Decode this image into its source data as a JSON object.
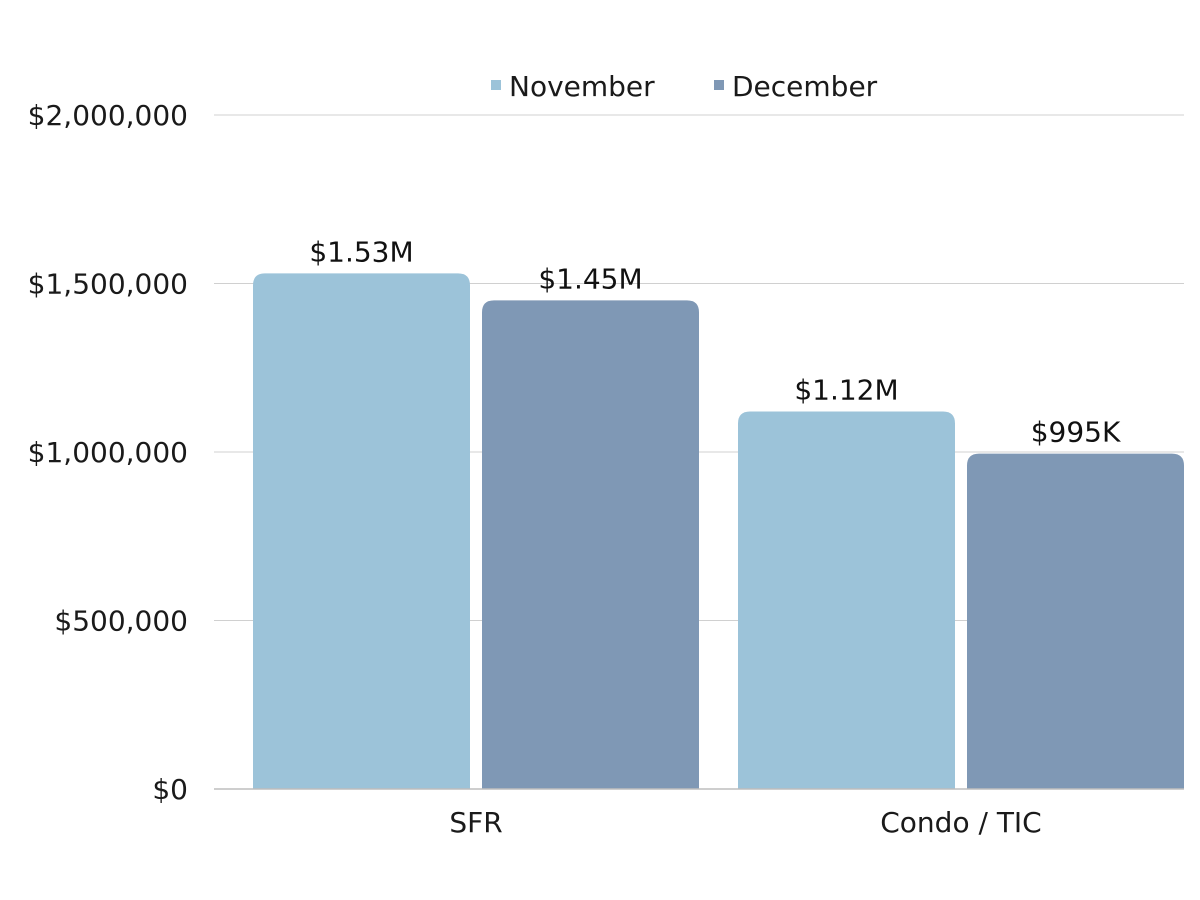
{
  "chart_data": {
    "type": "bar",
    "categories": [
      "SFR",
      "Condo / TIC"
    ],
    "series": [
      {
        "name": "November",
        "values": [
          1530000,
          1120000
        ],
        "labels": [
          "$1.53M",
          "$1.12M"
        ],
        "color": "#9cc3d9"
      },
      {
        "name": "December",
        "values": [
          1450000,
          995000
        ],
        "labels": [
          "$1.45M",
          "$995K"
        ],
        "color": "#7f98b5"
      }
    ],
    "yticks": [
      "$0",
      "$500,000",
      "$1,000,000",
      "$1,500,000",
      "$2,000,000"
    ],
    "ytick_values": [
      0,
      500000,
      1000000,
      1500000,
      2000000
    ],
    "ylim": [
      0,
      2000000
    ],
    "grid": true,
    "legend_position": "top-center",
    "title": "",
    "xlabel": "",
    "ylabel": ""
  }
}
